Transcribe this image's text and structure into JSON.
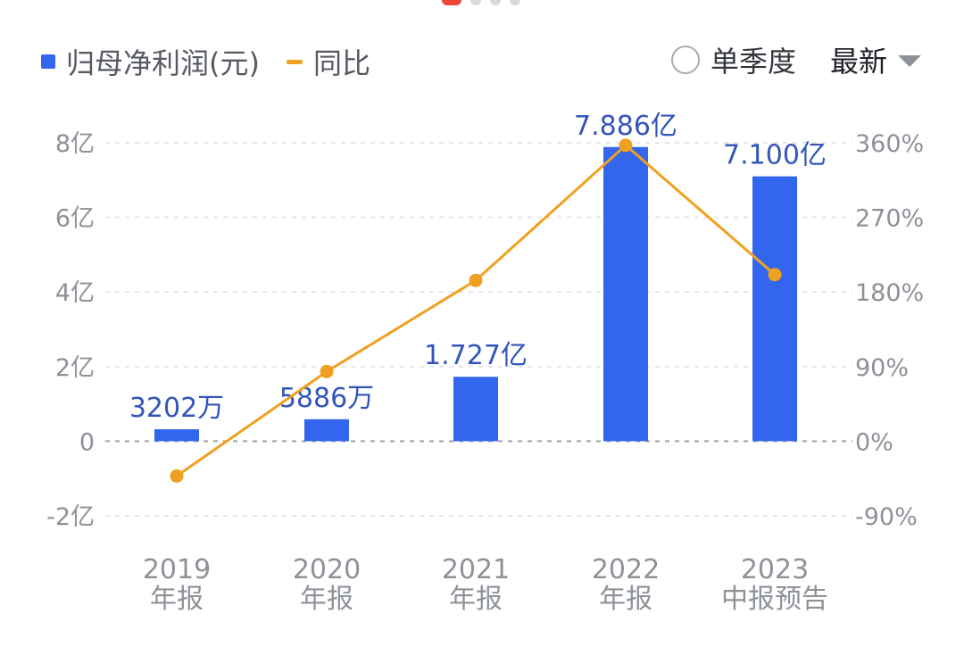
{
  "legend": {
    "bar_label": "归母净利润(元)",
    "line_label": "同比"
  },
  "controls": {
    "quarter_toggle_label": "单季度",
    "period_select_label": "最新"
  },
  "colors": {
    "bar": "#3366ee",
    "line": "#f0a020",
    "active_dot": "#e8453c"
  },
  "chart_data": {
    "type": "bar",
    "categories": [
      [
        "2019",
        "年报"
      ],
      [
        "2020",
        "年报"
      ],
      [
        "2021",
        "年报"
      ],
      [
        "2022",
        "年报"
      ],
      [
        "2023",
        "中报预告"
      ]
    ],
    "series": [
      {
        "name": "归母净利润(元)",
        "type": "bar",
        "axis": "left",
        "values": [
          32020000,
          58860000,
          172700000,
          788600000,
          710000000
        ],
        "labels": [
          "3202万",
          "5886万",
          "1.727亿",
          "7.886亿",
          "7.100亿"
        ]
      },
      {
        "name": "同比",
        "type": "line",
        "axis": "right",
        "values": [
          -42,
          84,
          194,
          357,
          201
        ]
      }
    ],
    "left_axis": {
      "ticks": [
        -200000000,
        0,
        200000000,
        400000000,
        600000000,
        800000000
      ],
      "tick_labels": [
        "-2亿",
        "0",
        "2亿",
        "4亿",
        "6亿",
        "8亿"
      ],
      "ylim": [
        -200000000,
        800000000
      ]
    },
    "right_axis": {
      "ticks": [
        -90,
        0,
        90,
        180,
        270,
        360
      ],
      "tick_labels": [
        "-90%",
        "0%",
        "90%",
        "180%",
        "270%",
        "360%"
      ],
      "ylim": [
        -90,
        360
      ]
    },
    "grid": true
  }
}
